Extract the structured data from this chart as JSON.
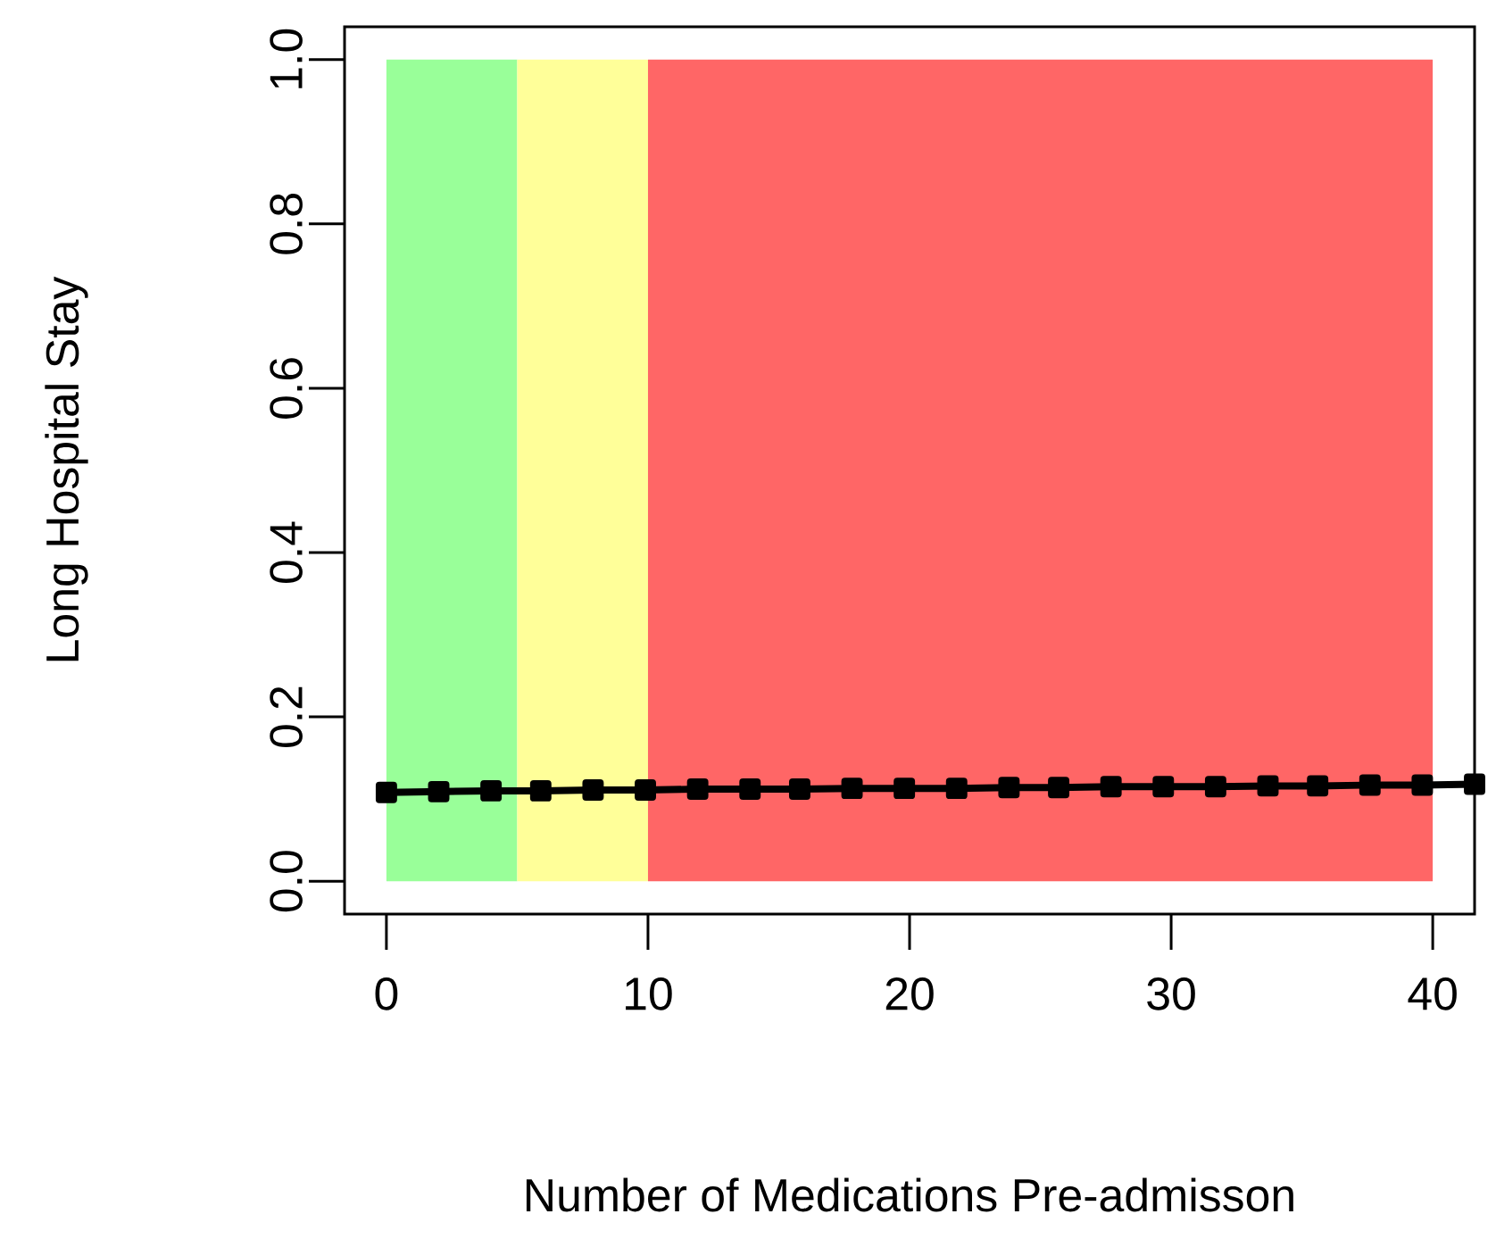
{
  "chart_data": {
    "type": "line",
    "xlabel": "Number of Medications Pre-admisson",
    "ylabel": "Long Hospital Stay",
    "x": [
      0,
      2,
      4,
      5.9,
      7.9,
      9.9,
      11.9,
      13.9,
      15.8,
      17.8,
      19.8,
      21.8,
      23.8,
      25.7,
      27.7,
      29.7,
      31.7,
      33.7,
      35.6,
      37.6,
      39.6,
      41.6
    ],
    "series": [
      {
        "color": "#000000",
        "values": [
          0.108,
          0.109,
          0.11,
          0.11,
          0.111,
          0.111,
          0.112,
          0.112,
          0.112,
          0.113,
          0.113,
          0.113,
          0.114,
          0.114,
          0.115,
          0.115,
          0.115,
          0.116,
          0.116,
          0.117,
          0.117,
          0.118
        ]
      }
    ],
    "bands": [
      {
        "axis": "x",
        "from": 0,
        "to": 5,
        "color": "#99ff99"
      },
      {
        "axis": "x",
        "from": 5,
        "to": 10,
        "color": "#ffff99"
      },
      {
        "axis": "x",
        "from": 10,
        "to": 40,
        "color": "#ff6666"
      }
    ],
    "xlim": [
      -1.6,
      41.6
    ],
    "ylim": [
      -0.04,
      1.04
    ],
    "xticks": [
      0,
      10,
      20,
      30,
      40
    ],
    "yticks": [
      {
        "value": 0,
        "label": "0.0"
      },
      0.2,
      0.4,
      0.6,
      0.8,
      {
        "value": 1,
        "label": "1.0"
      }
    ],
    "marker": "square",
    "line_style": "solid",
    "grid": false
  }
}
